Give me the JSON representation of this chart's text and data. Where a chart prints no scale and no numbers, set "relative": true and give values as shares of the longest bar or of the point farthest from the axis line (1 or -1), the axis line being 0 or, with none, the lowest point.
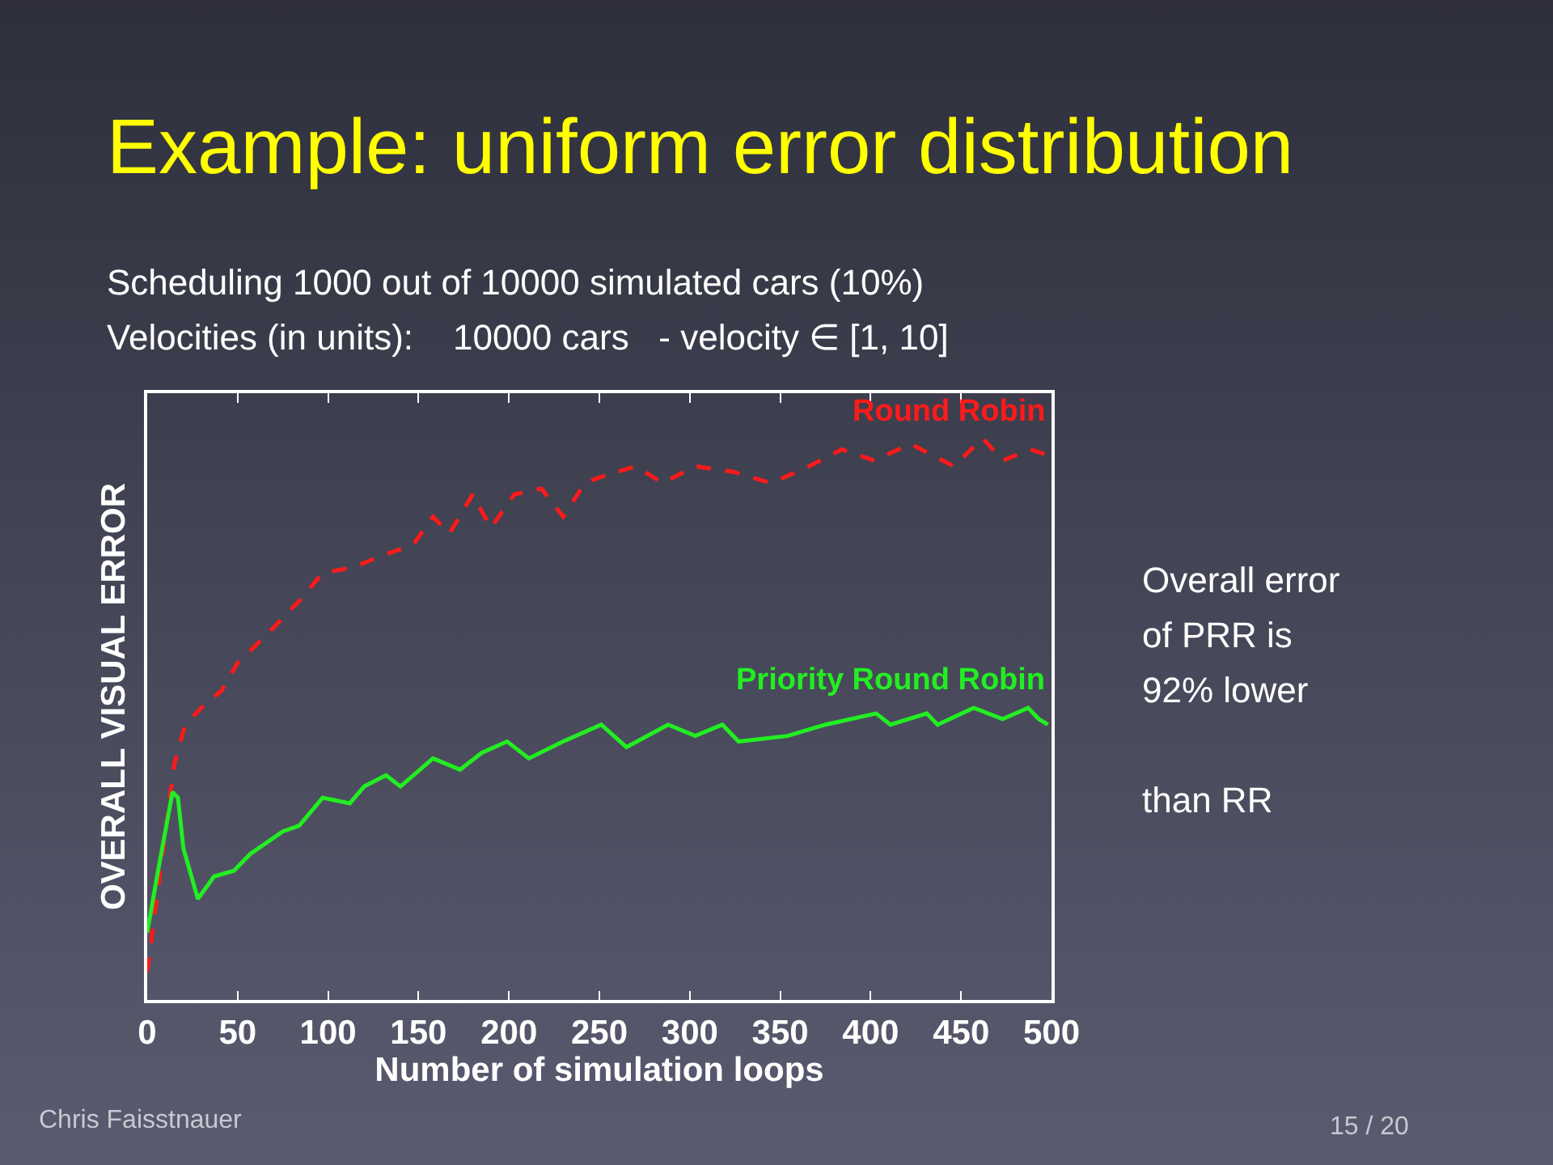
{
  "chart_data": {
    "type": "line",
    "title": "Example: uniform error distribution",
    "subtitle": "Scheduling 1000 out of 10000 simulated cars (10%)\nVelocities (in units):    10000 cars   - velocity ∈ [1, 10]",
    "xlabel": "Number of simulation loops",
    "ylabel": "OVERALL VISUAL ERROR",
    "relative": true,
    "xlim": [
      0,
      500
    ],
    "xticks": [
      0,
      50,
      100,
      150,
      200,
      250,
      300,
      350,
      400,
      450,
      500
    ],
    "grid": false,
    "legend": false,
    "marker": "none",
    "series": [
      {
        "name": "Round Robin",
        "color": "#ff1a1a",
        "line_style": "dashed",
        "x": [
          0,
          15,
          21,
          33,
          41,
          50,
          66,
          84,
          97,
          114,
          129,
          147,
          158,
          167,
          180,
          190,
          203,
          218,
          230,
          242,
          250,
          270,
          285,
          303,
          324,
          345,
          366,
          384,
          402,
          422,
          446,
          462,
          473,
          488,
          498
        ],
        "values": [
          0.05,
          0.42,
          0.49,
          0.53,
          0.55,
          0.6,
          0.65,
          0.71,
          0.76,
          0.77,
          0.79,
          0.81,
          0.86,
          0.83,
          0.9,
          0.84,
          0.9,
          0.91,
          0.86,
          0.92,
          0.93,
          0.95,
          0.92,
          0.95,
          0.94,
          0.92,
          0.95,
          0.98,
          0.96,
          0.99,
          0.95,
          1.0,
          0.96,
          0.98,
          0.97
        ]
      },
      {
        "name": "Priority Round Robin",
        "color": "#22ee22",
        "line_style": "solid",
        "x": [
          0,
          6,
          14,
          17,
          20,
          28,
          37,
          48,
          57,
          75,
          84,
          97,
          112,
          120,
          132,
          140,
          158,
          173,
          185,
          199,
          211,
          230,
          251,
          265,
          288,
          303,
          318,
          327,
          354,
          375,
          403,
          411,
          431,
          437,
          457,
          473,
          487,
          493,
          498
        ],
        "values": [
          0.12,
          0.23,
          0.37,
          0.36,
          0.27,
          0.18,
          0.22,
          0.23,
          0.26,
          0.3,
          0.31,
          0.36,
          0.35,
          0.38,
          0.4,
          0.38,
          0.43,
          0.41,
          0.44,
          0.46,
          0.43,
          0.46,
          0.49,
          0.45,
          0.49,
          0.47,
          0.49,
          0.46,
          0.47,
          0.49,
          0.51,
          0.49,
          0.51,
          0.49,
          0.52,
          0.5,
          0.52,
          0.5,
          0.49
        ]
      }
    ],
    "annotations": [
      "Overall error\nof PRR is\n92% lower\n\nthan RR",
      "Chris Faisstnauer",
      "15 / 20"
    ]
  }
}
